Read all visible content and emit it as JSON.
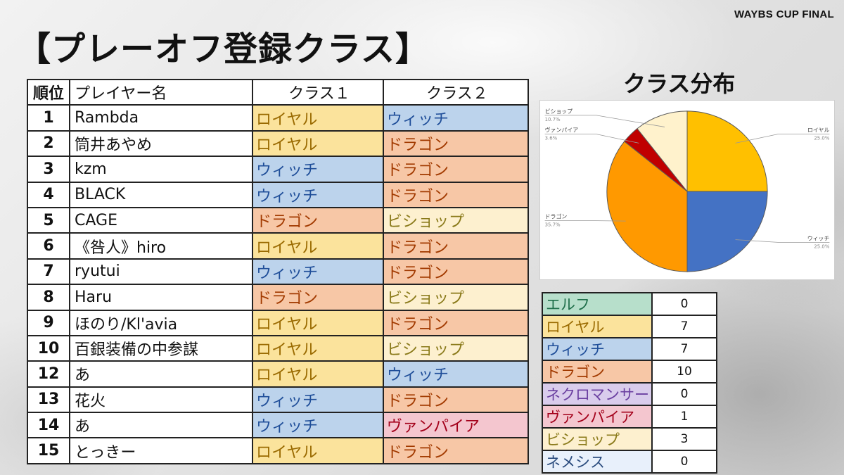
{
  "event_label": "WAYBS CUP FINAL",
  "page_title": "【プレーオフ登録クラス】",
  "table": {
    "headers": [
      "順位",
      "プレイヤー名",
      "クラス１",
      "クラス２"
    ],
    "rows": [
      {
        "rank": "1",
        "name": "Rambda",
        "class1": "ロイヤル",
        "class2": "ウィッチ"
      },
      {
        "rank": "2",
        "name": "筒井あやめ",
        "class1": "ロイヤル",
        "class2": "ドラゴン"
      },
      {
        "rank": "3",
        "name": "kzm",
        "class1": "ウィッチ",
        "class2": "ドラゴン"
      },
      {
        "rank": "4",
        "name": "BLACK",
        "class1": "ウィッチ",
        "class2": "ドラゴン"
      },
      {
        "rank": "5",
        "name": "CAGE",
        "class1": "ドラゴン",
        "class2": "ビショップ"
      },
      {
        "rank": "6",
        "name": "《咎人》hiro",
        "class1": "ロイヤル",
        "class2": "ドラゴン"
      },
      {
        "rank": "7",
        "name": "ryutui",
        "class1": "ウィッチ",
        "class2": "ドラゴン"
      },
      {
        "rank": "8",
        "name": "Haru",
        "class1": "ドラゴン",
        "class2": "ビショップ"
      },
      {
        "rank": "9",
        "name": "ほのり/Kl'avia",
        "class1": "ロイヤル",
        "class2": "ドラゴン"
      },
      {
        "rank": "10",
        "name": "百銀装備の中参謀",
        "class1": "ロイヤル",
        "class2": "ビショップ"
      },
      {
        "rank": "12",
        "name": "あ",
        "class1": "ロイヤル",
        "class2": "ウィッチ"
      },
      {
        "rank": "13",
        "name": "花火",
        "class1": "ウィッチ",
        "class2": "ドラゴン"
      },
      {
        "rank": "14",
        "name": "あ",
        "class1": "ウィッチ",
        "class2": "ヴァンパイア"
      },
      {
        "rank": "15",
        "name": "とっきー",
        "class1": "ロイヤル",
        "class2": "ドラゴン"
      }
    ]
  },
  "class_styles": {
    "エルフ": {
      "bg": "#b7dfcb",
      "fg": "#1f6f4a"
    },
    "ロイヤル": {
      "bg": "#fbe39c",
      "fg": "#9a6a00"
    },
    "ウィッチ": {
      "bg": "#bcd3ec",
      "fg": "#1f4e99"
    },
    "ドラゴン": {
      "bg": "#f7c7a6",
      "fg": "#a23a00"
    },
    "ネクロマンサー": {
      "bg": "#d9ccec",
      "fg": "#6a3fa0"
    },
    "ヴァンパイア": {
      "bg": "#f4c6cf",
      "fg": "#a3001a"
    },
    "ビショップ": {
      "bg": "#fdf0cf",
      "fg": "#8a7a1a"
    },
    "ネメシス": {
      "bg": "#e8f0fb",
      "fg": "#2b4c7e"
    }
  },
  "counts": [
    {
      "name": "エルフ",
      "value": "0"
    },
    {
      "name": "ロイヤル",
      "value": "7"
    },
    {
      "name": "ウィッチ",
      "value": "7"
    },
    {
      "name": "ドラゴン",
      "value": "10"
    },
    {
      "name": "ネクロマンサー",
      "value": "0"
    },
    {
      "name": "ヴァンパイア",
      "value": "1"
    },
    {
      "name": "ビショップ",
      "value": "3"
    },
    {
      "name": "ネメシス",
      "value": "0"
    }
  ],
  "chart_title": "クラス分布",
  "chart_data": {
    "type": "pie",
    "slices": [
      {
        "name": "ロイヤル",
        "value": 25.0,
        "label": "25.0%",
        "color": "#ffc000"
      },
      {
        "name": "ウィッチ",
        "value": 25.0,
        "label": "25.0%",
        "color": "#4472c4"
      },
      {
        "name": "ドラゴン",
        "value": 35.7,
        "label": "35.7%",
        "color": "#ff9900"
      },
      {
        "name": "ヴァンパイア",
        "value": 3.6,
        "label": "3.6%",
        "color": "#c00000"
      },
      {
        "name": "ビショップ",
        "value": 10.7,
        "label": "10.7%",
        "color": "#fff2cc"
      }
    ],
    "legend": "none"
  }
}
